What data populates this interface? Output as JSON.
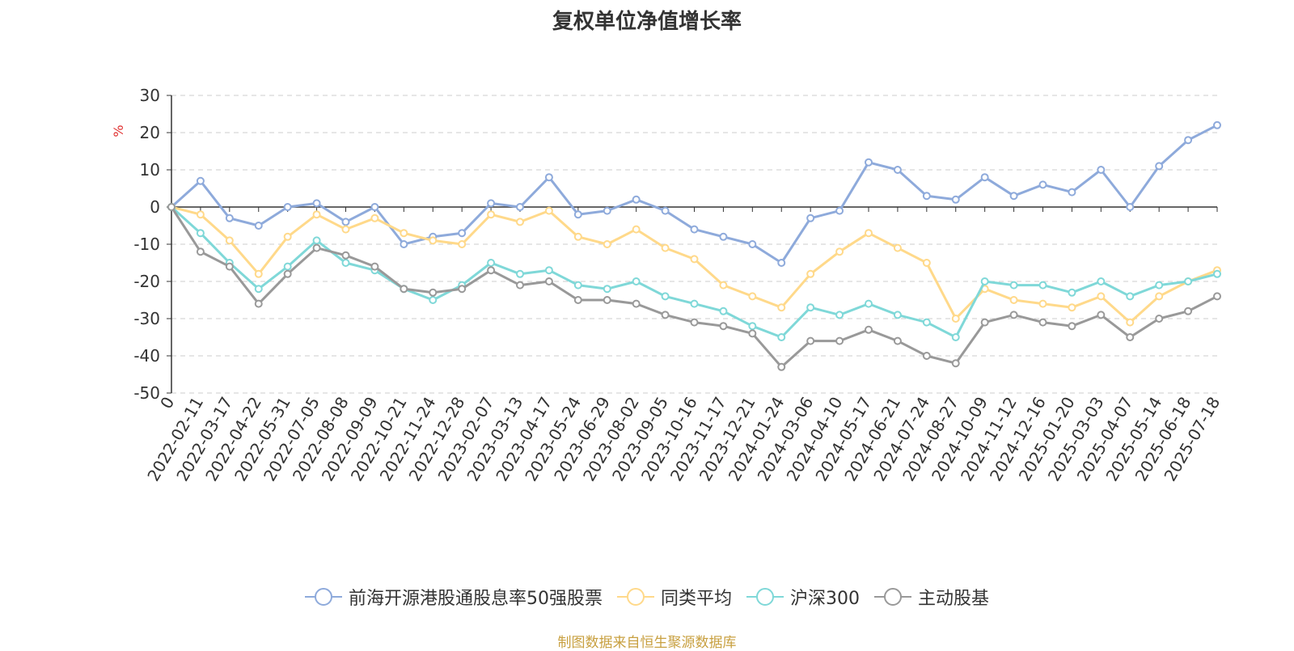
{
  "chart_data": {
    "type": "line",
    "title": "复权单位净值增长率",
    "ylabel": "%",
    "ylim": [
      -50,
      30
    ],
    "yticks": [
      30,
      20,
      10,
      0,
      -10,
      -20,
      -30,
      -40,
      -50
    ],
    "grid": true,
    "legend_position": "bottom",
    "x_tick_labels": [
      "0",
      "2022-02-11",
      "2022-03-17",
      "2022-04-22",
      "2022-05-31",
      "2022-07-05",
      "2022-08-08",
      "2022-09-09",
      "2022-10-21",
      "2022-11-24",
      "2022-12-28",
      "2023-02-07",
      "2023-03-13",
      "2023-04-17",
      "2023-05-24",
      "2023-06-29",
      "2023-08-02",
      "2023-09-05",
      "2023-10-16",
      "2023-11-17",
      "2023-12-21",
      "2024-01-24",
      "2024-03-06",
      "2024-04-10",
      "2024-05-17",
      "2024-06-21",
      "2024-07-24",
      "2024-08-27",
      "2024-10-09",
      "2024-11-12",
      "2024-12-16",
      "2025-01-20",
      "2025-03-03",
      "2025-04-07",
      "2025-05-14",
      "2025-06-18",
      "2025-07-18"
    ],
    "series": [
      {
        "name": "前海开源港股通股息率50强股票",
        "color": "#8eaadb",
        "values": [
          0,
          7,
          -3,
          -5,
          0,
          1,
          -4,
          0,
          -10,
          -8,
          -7,
          1,
          0,
          8,
          -2,
          -1,
          2,
          -1,
          -6,
          -8,
          -10,
          -15,
          -3,
          -1,
          12,
          10,
          3,
          2,
          8,
          3,
          6,
          4,
          10,
          0,
          11,
          18,
          22
        ]
      },
      {
        "name": "同类平均",
        "color": "#ffd98a",
        "values": [
          0,
          -2,
          -9,
          -18,
          -8,
          -2,
          -6,
          -3,
          -7,
          -9,
          -10,
          -2,
          -4,
          -1,
          -8,
          -10,
          -6,
          -11,
          -14,
          -21,
          -24,
          -27,
          -18,
          -12,
          -7,
          -11,
          -15,
          -30,
          -22,
          -25,
          -26,
          -27,
          -24,
          -31,
          -24,
          -20,
          -17
        ]
      },
      {
        "name": "沪深300",
        "color": "#7fd8d8",
        "values": [
          0,
          -7,
          -15,
          -22,
          -16,
          -9,
          -15,
          -17,
          -22,
          -25,
          -21,
          -15,
          -18,
          -17,
          -21,
          -22,
          -20,
          -24,
          -26,
          -28,
          -32,
          -35,
          -27,
          -29,
          -26,
          -29,
          -31,
          -35,
          -20,
          -21,
          -21,
          -23,
          -20,
          -24,
          -21,
          -20,
          -18
        ]
      },
      {
        "name": "主动股基",
        "color": "#999999",
        "values": [
          0,
          -12,
          -16,
          -26,
          -18,
          -11,
          -13,
          -16,
          -22,
          -23,
          -22,
          -17,
          -21,
          -20,
          -25,
          -25,
          -26,
          -29,
          -31,
          -32,
          -34,
          -43,
          -36,
          -36,
          -33,
          -36,
          -40,
          -42,
          -31,
          -29,
          -31,
          -32,
          -29,
          -35,
          -30,
          -28,
          -24
        ]
      }
    ]
  },
  "legend": {
    "items": [
      "前海开源港股通股息率50强股票",
      "同类平均",
      "沪深300",
      "主动股基"
    ]
  },
  "source_note": "制图数据来自恒生聚源数据库"
}
